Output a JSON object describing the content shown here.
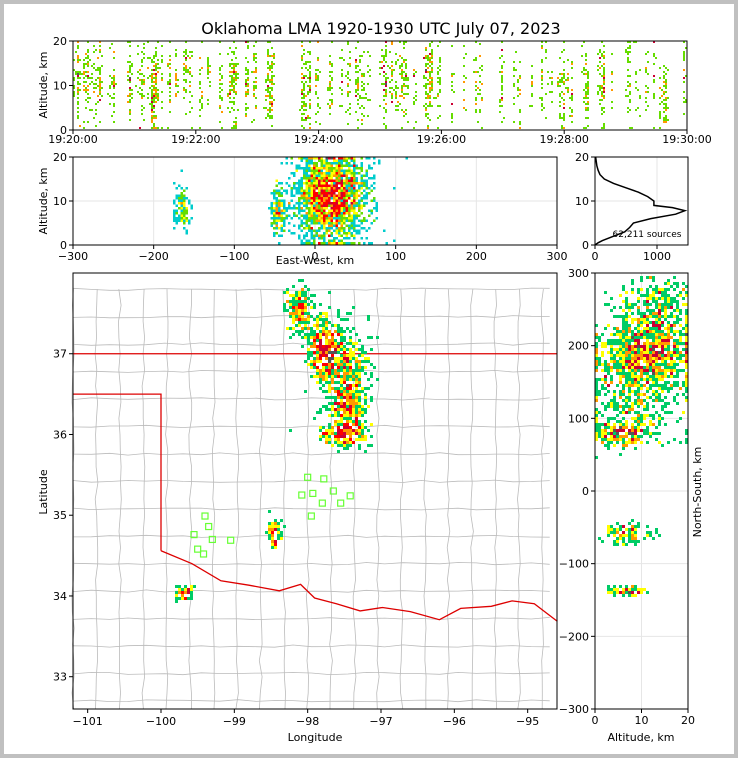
{
  "chart_data": {
    "type": "heatmap",
    "title": "Oklahoma LMA 1920-1930 UTC July 07, 2023",
    "colors": {
      "density": [
        "#0000cc",
        "#3399ff",
        "#00cccc",
        "#00cc66",
        "#66dd00",
        "#ffff00",
        "#ff9900",
        "#ff0000",
        "#cc0033",
        "#ffffff",
        "#555555"
      ],
      "state_line": "#dd0000",
      "river": "#dd0000",
      "county": "#bbbbbb",
      "station": "#66ff33"
    },
    "panels": {
      "time_height": {
        "ylabel": "Altitude, km",
        "ylim": [
          0,
          20
        ],
        "yticks": [
          "0",
          "10",
          "20"
        ],
        "xlim": [
          "19:20:00",
          "19:30:00"
        ],
        "xticks": [
          "19:20:00",
          "19:22:00",
          "19:24:00",
          "19:26:00",
          "19:28:00",
          "19:30:00"
        ]
      },
      "east_west_altitude": {
        "xlabel": "East-West, km",
        "ylabel": "Altitude, km",
        "xlim": [
          -300,
          300
        ],
        "ylim": [
          0,
          20
        ],
        "xticks": [
          "−300",
          "−200",
          "−100",
          "0",
          "100",
          "200",
          "300"
        ],
        "yticks": [
          "0",
          "10",
          "20"
        ],
        "clusters": [
          {
            "x": -165,
            "alt": 8,
            "sx": 5,
            "sa": 2.5,
            "n": 110
          },
          {
            "x": -45,
            "alt": 8,
            "sx": 5,
            "sa": 3,
            "n": 160
          },
          {
            "x": 20,
            "alt": 11,
            "sx": 22,
            "sa": 5,
            "n": 2400
          }
        ]
      },
      "altitude_histogram": {
        "label": "62,211 sources",
        "xticks": [
          "0",
          "1000"
        ],
        "yticks": [
          "0",
          "10",
          "20"
        ],
        "xlim": [
          0,
          1500
        ],
        "ylim": [
          0,
          20
        ],
        "profile": [
          [
            0,
            0
          ],
          [
            0.5,
            50
          ],
          [
            1,
            120
          ],
          [
            2,
            300
          ],
          [
            3,
            480
          ],
          [
            4,
            560
          ],
          [
            5,
            620
          ],
          [
            6,
            900
          ],
          [
            7,
            1300
          ],
          [
            7.8,
            1450
          ],
          [
            8.5,
            1250
          ],
          [
            9,
            950
          ],
          [
            10,
            950
          ],
          [
            11,
            850
          ],
          [
            12,
            700
          ],
          [
            13,
            500
          ],
          [
            14,
            300
          ],
          [
            15,
            150
          ],
          [
            16,
            80
          ],
          [
            17,
            50
          ],
          [
            18,
            30
          ],
          [
            19,
            20
          ],
          [
            20,
            10
          ]
        ]
      },
      "plan_view": {
        "xlabel": "Longitude",
        "ylabel": "Latitude",
        "xlim": [
          -101.2,
          -94.6
        ],
        "ylim": [
          32.6,
          38.0
        ],
        "xticks": [
          "−101",
          "−100",
          "−99",
          "−98",
          "−97",
          "−96",
          "−95"
        ],
        "yticks": [
          "33",
          "34",
          "35",
          "36",
          "37"
        ],
        "clusters": [
          {
            "lon": -98.1,
            "lat": 37.55,
            "slon": 0.1,
            "slat": 0.15,
            "n": 180
          },
          {
            "lon": -97.75,
            "lat": 37.05,
            "slon": 0.12,
            "slat": 0.18,
            "n": 500
          },
          {
            "lon": -97.5,
            "lat": 36.75,
            "slon": 0.18,
            "slat": 0.3,
            "n": 400
          },
          {
            "lon": -97.45,
            "lat": 36.3,
            "slon": 0.12,
            "slat": 0.18,
            "n": 260
          },
          {
            "lon": -97.5,
            "lat": 36.0,
            "slon": 0.15,
            "slat": 0.07,
            "n": 220
          },
          {
            "lon": -98.45,
            "lat": 34.78,
            "slon": 0.05,
            "slat": 0.08,
            "n": 90
          },
          {
            "lon": -99.68,
            "lat": 34.03,
            "slon": 0.06,
            "slat": 0.05,
            "n": 70
          }
        ],
        "stations": [
          [
            -98.0,
            35.47
          ],
          [
            -98.08,
            35.25
          ],
          [
            -97.93,
            35.27
          ],
          [
            -97.78,
            35.45
          ],
          [
            -97.8,
            35.15
          ],
          [
            -97.95,
            34.99
          ],
          [
            -97.55,
            35.15
          ],
          [
            -97.42,
            35.24
          ],
          [
            -97.65,
            35.3
          ],
          [
            -99.4,
            34.99
          ],
          [
            -99.35,
            34.86
          ],
          [
            -99.55,
            34.76
          ],
          [
            -99.3,
            34.7
          ],
          [
            -99.05,
            34.69
          ],
          [
            -99.5,
            34.58
          ],
          [
            -99.42,
            34.52
          ]
        ]
      },
      "north_south_altitude": {
        "xlabel": "Altitude, km",
        "ylabel": "North-South, km",
        "xlim": [
          0,
          20
        ],
        "ylim": [
          -300,
          300
        ],
        "xticks": [
          "0",
          "10",
          "20"
        ],
        "yticks": [
          "−300",
          "−200",
          "−100",
          "0",
          "100",
          "200",
          "300"
        ],
        "clusters": [
          {
            "ns": 250,
            "alt": 13,
            "sn": 25,
            "sa": 4,
            "n": 350
          },
          {
            "ns": 190,
            "alt": 11,
            "sn": 22,
            "sa": 5,
            "n": 900
          },
          {
            "ns": 130,
            "alt": 9,
            "sn": 30,
            "sa": 5,
            "n": 400
          },
          {
            "ns": 78,
            "alt": 6,
            "sn": 8,
            "sa": 3,
            "n": 250
          },
          {
            "ns": -58,
            "alt": 7,
            "sn": 7,
            "sa": 2.5,
            "n": 110
          },
          {
            "ns": -138,
            "alt": 7,
            "sn": 4,
            "sa": 2,
            "n": 70
          }
        ]
      }
    }
  }
}
